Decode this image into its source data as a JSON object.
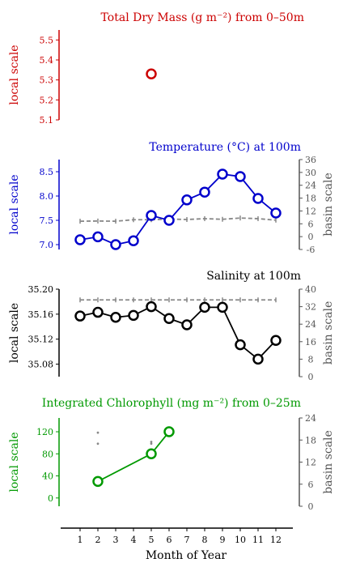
{
  "x_axis": {
    "label": "Month of Year",
    "ticks": [
      1,
      2,
      3,
      4,
      5,
      6,
      7,
      8,
      9,
      10,
      11,
      12
    ],
    "range": [
      0.5,
      12.5
    ]
  },
  "chart_data": [
    {
      "type": "line",
      "title": "Total Dry Mass (g m⁻²) from 0–50m",
      "color": "#cc0000",
      "ylabel": "local scale",
      "ylim": [
        5.1,
        5.55
      ],
      "yticks": [
        "5.1",
        "5.2",
        "5.3",
        "5.4",
        "5.5"
      ],
      "series": [
        {
          "x": [
            5
          ],
          "y": [
            5.33
          ]
        }
      ]
    },
    {
      "type": "line",
      "title": "Temperature (°C) at 100m",
      "color": "#0000cc",
      "ylabel": "local scale",
      "ylabel_right": "basin scale",
      "ylim": [
        6.9,
        8.75
      ],
      "yticks": [
        "7.0",
        "7.5",
        "8.0",
        "8.5"
      ],
      "ylim_right": [
        -6,
        36
      ],
      "yticks_right": [
        "-6",
        "0",
        "6",
        "12",
        "18",
        "24",
        "30",
        "36"
      ],
      "series": [
        {
          "x": [
            1,
            2,
            3,
            4,
            5,
            6,
            7,
            8,
            9,
            10,
            11,
            12
          ],
          "y": [
            7.1,
            7.16,
            7.0,
            7.08,
            7.6,
            7.5,
            7.92,
            8.08,
            8.45,
            8.4,
            7.95,
            7.65
          ]
        },
        {
          "x": [
            1,
            2,
            3,
            4,
            5,
            6,
            7,
            8,
            9,
            10,
            11,
            12
          ],
          "y": [
            7.2,
            7.3,
            7.2,
            7.9,
            7.9,
            8.2,
            8.0,
            8.4,
            8.1,
            8.7,
            8.4,
            7.7
          ],
          "axis": "right",
          "style": "dashed",
          "color": "#888888"
        }
      ]
    },
    {
      "type": "line",
      "title": "Salinity at 100m",
      "color": "#000000",
      "ylabel": "local scale",
      "ylabel_right": "basin scale",
      "ylim": [
        35.06,
        35.2
      ],
      "yticks": [
        "35.08",
        "35.12",
        "35.16",
        "35.20"
      ],
      "ylim_right": [
        0,
        40
      ],
      "yticks_right": [
        "0",
        "8",
        "16",
        "24",
        "32",
        "40"
      ],
      "series": [
        {
          "x": [
            1,
            2,
            3,
            4,
            5,
            6,
            7,
            8,
            9,
            10,
            11,
            12
          ],
          "y": [
            35.157,
            35.163,
            35.155,
            35.158,
            35.172,
            35.153,
            35.143,
            35.171,
            35.171,
            35.111,
            35.088,
            35.118
          ]
        },
        {
          "x": [
            1,
            2,
            3,
            4,
            5,
            6,
            7,
            8,
            9,
            10,
            11,
            12
          ],
          "y": [
            35.1,
            35.1,
            35.1,
            35.1,
            35.1,
            35.1,
            35.1,
            35.1,
            35.1,
            35.1,
            35.1,
            35.1
          ],
          "axis": "right",
          "style": "dashed",
          "color": "#888888"
        }
      ]
    },
    {
      "type": "line",
      "title": "Integrated Chlorophyll (mg m⁻²) from 0–25m",
      "color": "#009900",
      "ylabel": "local scale",
      "ylabel_right": "basin scale",
      "ylim": [
        -15,
        145
      ],
      "yticks": [
        "0",
        "40",
        "80",
        "120"
      ],
      "ylim_right": [
        0,
        24
      ],
      "yticks_right": [
        "0",
        "6",
        "12",
        "18",
        "24"
      ],
      "series": [
        {
          "x": [
            2,
            5,
            6
          ],
          "y": [
            30,
            80,
            120
          ]
        },
        {
          "x": [
            2,
            2,
            5,
            5
          ],
          "y": [
            20,
            17,
            17.5,
            17
          ],
          "axis": "right",
          "style": "points",
          "color": "#888888"
        }
      ]
    }
  ]
}
